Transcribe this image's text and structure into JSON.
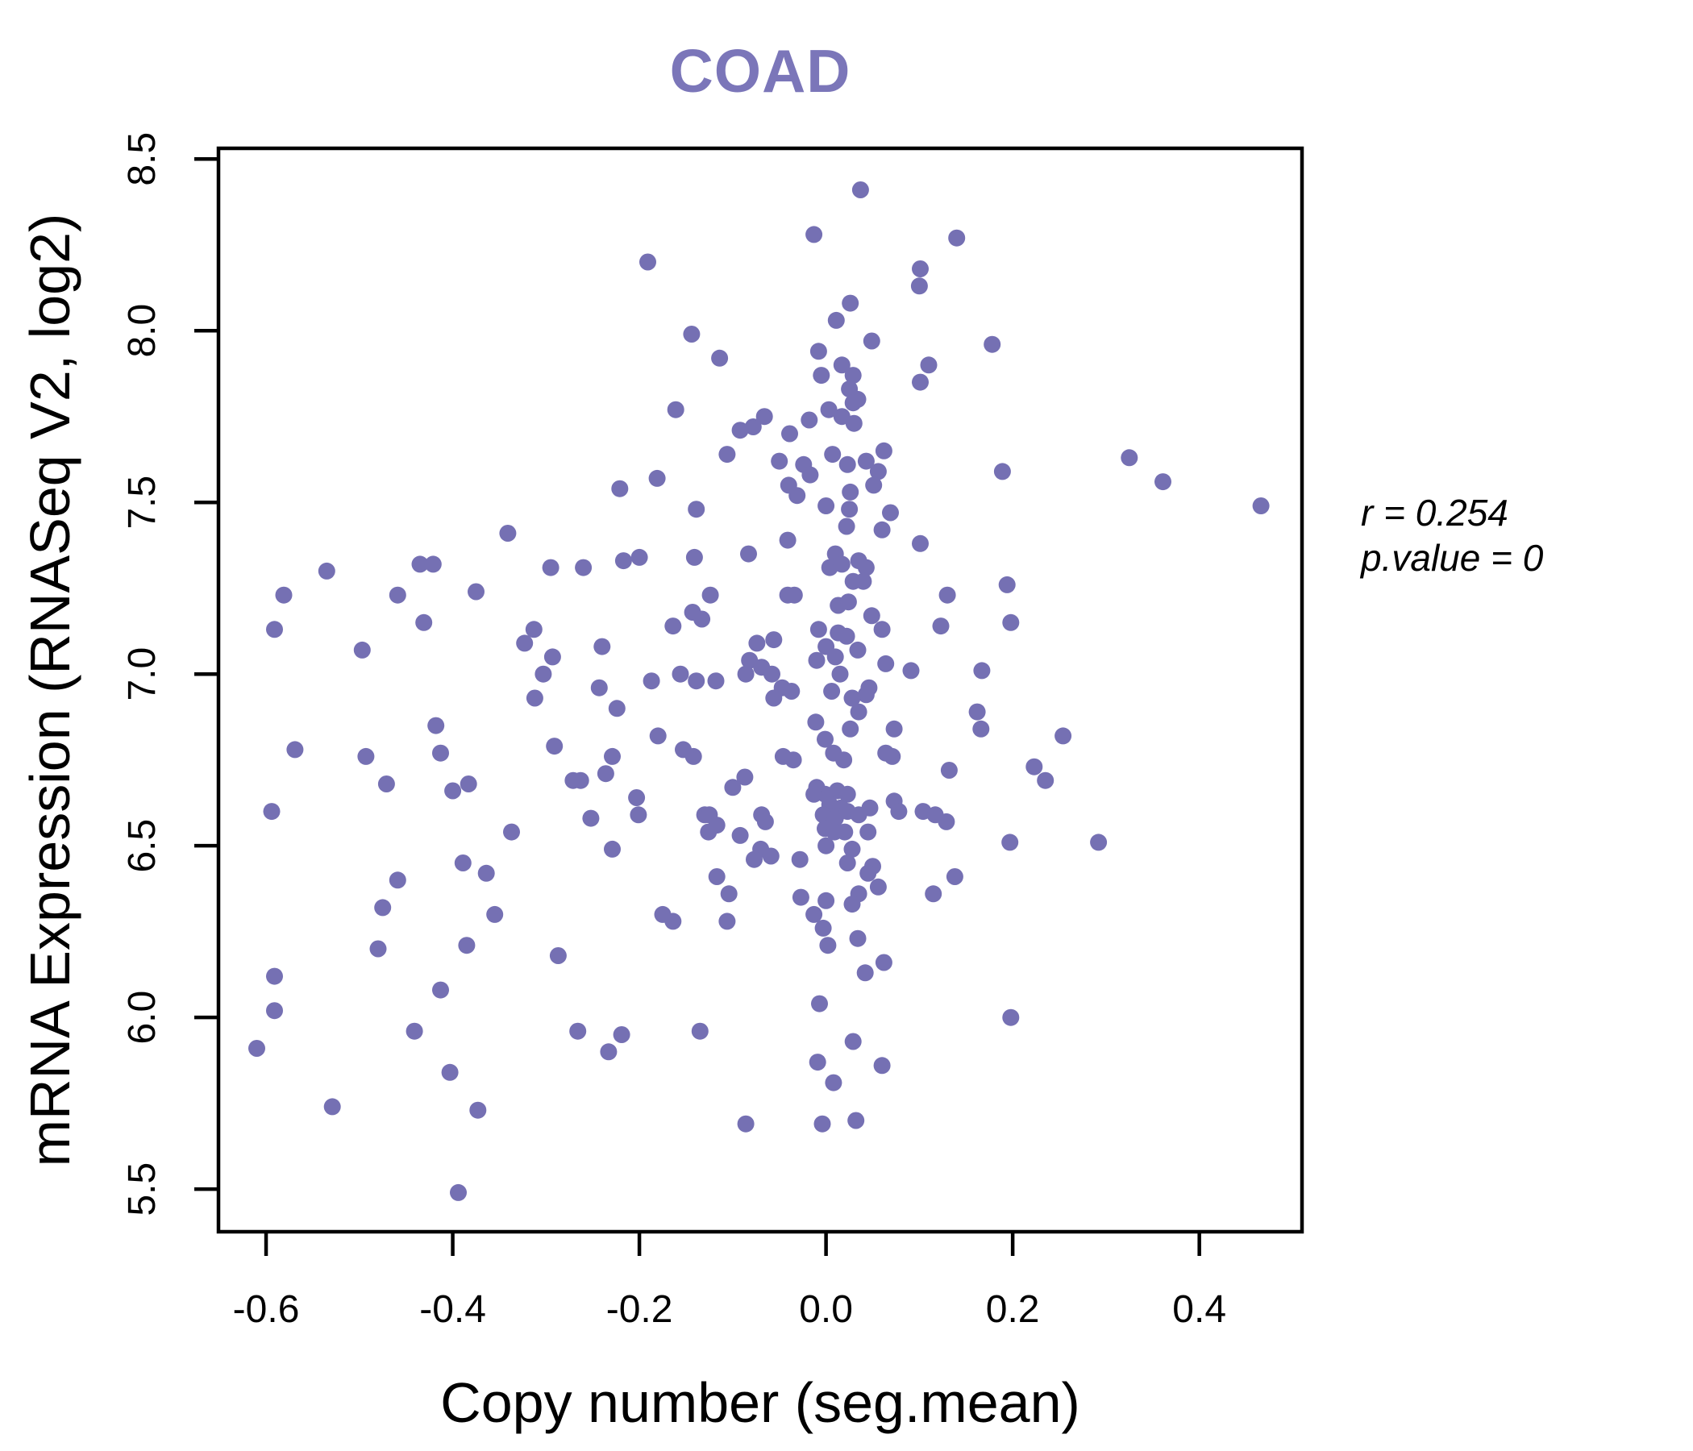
{
  "header": {
    "title": "COAD",
    "title_color": "#7b76b9"
  },
  "annotation": {
    "r_label": "r = 0.254",
    "p_label": "p.value = 0"
  },
  "chart_data": {
    "type": "scatter",
    "title": "COAD",
    "xlabel": "Copy number (seg.mean)",
    "ylabel": "mRNA Expression (RNASeq V2, log2)",
    "xlim": [
      -0.651,
      0.51
    ],
    "ylim": [
      5.376,
      8.531
    ],
    "x_ticks": [
      -0.6,
      -0.4,
      -0.2,
      0.0,
      0.2,
      0.4
    ],
    "x_tick_labels": [
      "-0.6",
      "-0.4",
      "-0.2",
      "0.0",
      "0.2",
      "0.4"
    ],
    "y_ticks": [
      5.5,
      6.0,
      6.5,
      7.0,
      7.5,
      8.0,
      8.5
    ],
    "y_tick_labels": [
      "5.5",
      "6.0",
      "6.5",
      "7.0",
      "7.5",
      "8.0",
      "8.5"
    ],
    "grid": false,
    "legend": "none",
    "point_color": "#7570b3",
    "point_radius_px": 10.5,
    "correlation": {
      "r": 0.254,
      "p_value": 0
    },
    "points": [
      [
        0.037,
        8.41
      ],
      [
        -0.013,
        8.28
      ],
      [
        -0.191,
        8.2
      ],
      [
        0.101,
        8.18
      ],
      [
        0.1,
        8.13
      ],
      [
        0.026,
        8.08
      ],
      [
        0.011,
        8.03
      ],
      [
        -0.144,
        7.99
      ],
      [
        -0.008,
        7.94
      ],
      [
        -0.114,
        7.92
      ],
      [
        -0.005,
        7.87
      ],
      [
        0.049,
        7.97
      ],
      [
        0.017,
        7.9
      ],
      [
        0.029,
        7.87
      ],
      [
        0.025,
        7.83
      ],
      [
        0.034,
        7.8
      ],
      [
        0.11,
        7.9
      ],
      [
        0.101,
        7.85
      ],
      [
        -0.161,
        7.77
      ],
      [
        -0.066,
        7.75
      ],
      [
        -0.078,
        7.72
      ],
      [
        -0.092,
        7.71
      ],
      [
        -0.018,
        7.74
      ],
      [
        0.003,
        7.77
      ],
      [
        0.017,
        7.75
      ],
      [
        0.029,
        7.79
      ],
      [
        0.03,
        7.73
      ],
      [
        -0.039,
        7.7
      ],
      [
        -0.106,
        7.64
      ],
      [
        -0.05,
        7.62
      ],
      [
        -0.024,
        7.61
      ],
      [
        -0.017,
        7.58
      ],
      [
        0.007,
        7.64
      ],
      [
        0.023,
        7.61
      ],
      [
        0.043,
        7.62
      ],
      [
        0.062,
        7.65
      ],
      [
        0.056,
        7.59
      ],
      [
        -0.181,
        7.57
      ],
      [
        -0.221,
        7.54
      ],
      [
        -0.04,
        7.55
      ],
      [
        -0.031,
        7.52
      ],
      [
        0.026,
        7.53
      ],
      [
        0.051,
        7.55
      ],
      [
        0.14,
        8.27
      ],
      [
        0.178,
        7.96
      ],
      [
        0.325,
        7.63
      ],
      [
        0.189,
        7.59
      ],
      [
        0.361,
        7.56
      ],
      [
        0.466,
        7.49
      ],
      [
        -0.341,
        7.41
      ],
      [
        -0.435,
        7.32
      ],
      [
        -0.421,
        7.32
      ],
      [
        -0.535,
        7.3
      ],
      [
        -0.295,
        7.31
      ],
      [
        -0.581,
        7.23
      ],
      [
        -0.459,
        7.23
      ],
      [
        -0.375,
        7.24
      ],
      [
        -0.591,
        7.13
      ],
      [
        -0.431,
        7.15
      ],
      [
        -0.313,
        7.13
      ],
      [
        -0.323,
        7.09
      ],
      [
        -0.497,
        7.07
      ],
      [
        -0.293,
        7.05
      ],
      [
        -0.303,
        7.0
      ],
      [
        -0.312,
        6.93
      ],
      [
        -0.418,
        6.85
      ],
      [
        -0.291,
        6.79
      ],
      [
        -0.569,
        6.78
      ],
      [
        -0.493,
        6.76
      ],
      [
        -0.413,
        6.77
      ],
      [
        -0.471,
        6.68
      ],
      [
        -0.4,
        6.66
      ],
      [
        -0.383,
        6.68
      ],
      [
        -0.271,
        6.69
      ],
      [
        -0.594,
        6.6
      ],
      [
        -0.337,
        6.54
      ],
      [
        -0.389,
        6.45
      ],
      [
        -0.139,
        7.48
      ],
      [
        0.069,
        7.47
      ],
      [
        0.025,
        7.48
      ],
      [
        0.0,
        7.49
      ],
      [
        0.06,
        7.42
      ],
      [
        0.022,
        7.43
      ],
      [
        -0.041,
        7.39
      ],
      [
        0.101,
        7.38
      ],
      [
        -0.083,
        7.35
      ],
      [
        0.01,
        7.35
      ],
      [
        -0.217,
        7.33
      ],
      [
        -0.2,
        7.34
      ],
      [
        -0.26,
        7.31
      ],
      [
        -0.141,
        7.34
      ],
      [
        0.004,
        7.31
      ],
      [
        0.017,
        7.32
      ],
      [
        0.035,
        7.33
      ],
      [
        0.043,
        7.31
      ],
      [
        0.029,
        7.27
      ],
      [
        0.04,
        7.27
      ],
      [
        -0.041,
        7.23
      ],
      [
        -0.034,
        7.23
      ],
      [
        0.013,
        7.2
      ],
      [
        0.024,
        7.21
      ],
      [
        -0.124,
        7.23
      ],
      [
        -0.143,
        7.18
      ],
      [
        -0.133,
        7.16
      ],
      [
        -0.164,
        7.14
      ],
      [
        0.049,
        7.17
      ],
      [
        0.06,
        7.13
      ],
      [
        -0.24,
        7.08
      ],
      [
        -0.074,
        7.09
      ],
      [
        -0.056,
        7.1
      ],
      [
        -0.082,
        7.04
      ],
      [
        -0.069,
        7.02
      ],
      [
        -0.086,
        7.0
      ],
      [
        -0.058,
        7.0
      ],
      [
        -0.047,
        6.96
      ],
      [
        -0.056,
        6.93
      ],
      [
        -0.037,
        6.95
      ],
      [
        -0.008,
        7.13
      ],
      [
        0.013,
        7.12
      ],
      [
        0.022,
        7.11
      ],
      [
        0.0,
        7.08
      ],
      [
        -0.01,
        7.04
      ],
      [
        0.01,
        7.05
      ],
      [
        0.034,
        7.07
      ],
      [
        0.046,
        6.96
      ],
      [
        0.064,
        7.03
      ],
      [
        0.091,
        7.01
      ],
      [
        0.006,
        6.95
      ],
      [
        0.015,
        7.0
      ],
      [
        0.028,
        6.93
      ],
      [
        0.043,
        6.94
      ],
      [
        -0.187,
        6.98
      ],
      [
        -0.243,
        6.96
      ],
      [
        -0.156,
        7.0
      ],
      [
        -0.139,
        6.98
      ],
      [
        -0.118,
        6.98
      ],
      [
        -0.224,
        6.9
      ],
      [
        -0.18,
        6.82
      ],
      [
        -0.153,
        6.78
      ],
      [
        -0.142,
        6.76
      ],
      [
        -0.011,
        6.86
      ],
      [
        -0.001,
        6.81
      ],
      [
        0.008,
        6.77
      ],
      [
        0.019,
        6.75
      ],
      [
        0.026,
        6.84
      ],
      [
        0.035,
        6.89
      ],
      [
        0.073,
        6.84
      ],
      [
        -0.046,
        6.76
      ],
      [
        -0.035,
        6.75
      ],
      [
        0.064,
        6.77
      ],
      [
        0.071,
        6.76
      ],
      [
        -0.229,
        6.76
      ],
      [
        -0.236,
        6.71
      ],
      [
        -0.263,
        6.69
      ],
      [
        -0.203,
        6.64
      ],
      [
        -0.201,
        6.59
      ],
      [
        -0.252,
        6.58
      ],
      [
        -0.1,
        6.67
      ],
      [
        -0.087,
        6.7
      ],
      [
        -0.01,
        6.67
      ],
      [
        -0.001,
        6.65
      ],
      [
        0.012,
        6.66
      ],
      [
        0.023,
        6.65
      ],
      [
        0.004,
        6.62
      ],
      [
        0.016,
        6.61
      ],
      [
        -0.003,
        6.59
      ],
      [
        0.01,
        6.58
      ],
      [
        0.023,
        6.6
      ],
      [
        0.035,
        6.59
      ],
      [
        -0.001,
        6.55
      ],
      [
        0.009,
        6.54
      ],
      [
        0.02,
        6.54
      ],
      [
        -0.013,
        6.65
      ],
      [
        0.047,
        6.61
      ],
      [
        0.073,
        6.63
      ],
      [
        -0.229,
        6.49
      ],
      [
        -0.13,
        6.59
      ],
      [
        -0.125,
        6.59
      ],
      [
        -0.117,
        6.56
      ],
      [
        -0.126,
        6.54
      ],
      [
        -0.092,
        6.53
      ],
      [
        -0.069,
        6.59
      ],
      [
        -0.065,
        6.57
      ],
      [
        0.045,
        6.54
      ],
      [
        0.104,
        6.6
      ],
      [
        -0.07,
        6.49
      ],
      [
        -0.059,
        6.47
      ],
      [
        -0.077,
        6.46
      ],
      [
        -0.028,
        6.46
      ],
      [
        0.0,
        6.5
      ],
      [
        0.028,
        6.49
      ],
      [
        0.023,
        6.45
      ],
      [
        0.117,
        6.59
      ],
      [
        0.078,
        6.6
      ],
      [
        0.05,
        6.44
      ],
      [
        0.13,
        7.23
      ],
      [
        0.194,
        7.26
      ],
      [
        0.198,
        7.15
      ],
      [
        0.123,
        7.14
      ],
      [
        0.167,
        7.01
      ],
      [
        0.162,
        6.89
      ],
      [
        0.166,
        6.84
      ],
      [
        0.254,
        6.82
      ],
      [
        0.223,
        6.73
      ],
      [
        0.235,
        6.69
      ],
      [
        0.132,
        6.72
      ],
      [
        0.129,
        6.57
      ],
      [
        0.197,
        6.51
      ],
      [
        0.292,
        6.51
      ],
      [
        -0.459,
        6.4
      ],
      [
        -0.364,
        6.42
      ],
      [
        -0.475,
        6.32
      ],
      [
        -0.355,
        6.3
      ],
      [
        -0.48,
        6.2
      ],
      [
        -0.385,
        6.21
      ],
      [
        -0.287,
        6.18
      ],
      [
        -0.591,
        6.12
      ],
      [
        -0.591,
        6.02
      ],
      [
        -0.413,
        6.08
      ],
      [
        -0.441,
        5.96
      ],
      [
        -0.61,
        5.91
      ],
      [
        -0.403,
        5.84
      ],
      [
        -0.529,
        5.74
      ],
      [
        -0.373,
        5.73
      ],
      [
        -0.394,
        5.49
      ],
      [
        -0.117,
        6.41
      ],
      [
        -0.104,
        6.36
      ],
      [
        -0.175,
        6.3
      ],
      [
        -0.164,
        6.28
      ],
      [
        -0.106,
        6.28
      ],
      [
        -0.027,
        6.35
      ],
      [
        0.045,
        6.42
      ],
      [
        0.115,
        6.36
      ],
      [
        0.0,
        6.34
      ],
      [
        0.035,
        6.36
      ],
      [
        0.056,
        6.38
      ],
      [
        0.028,
        6.33
      ],
      [
        -0.013,
        6.3
      ],
      [
        -0.003,
        6.26
      ],
      [
        0.002,
        6.21
      ],
      [
        0.034,
        6.23
      ],
      [
        0.042,
        6.13
      ],
      [
        0.062,
        6.16
      ],
      [
        -0.007,
        6.04
      ],
      [
        -0.266,
        5.96
      ],
      [
        -0.219,
        5.95
      ],
      [
        -0.233,
        5.9
      ],
      [
        -0.135,
        5.96
      ],
      [
        0.029,
        5.93
      ],
      [
        -0.009,
        5.87
      ],
      [
        0.06,
        5.86
      ],
      [
        0.008,
        5.81
      ],
      [
        -0.086,
        5.69
      ],
      [
        -0.004,
        5.69
      ],
      [
        0.032,
        5.7
      ],
      [
        0.138,
        6.41
      ],
      [
        0.198,
        6.0
      ]
    ]
  }
}
